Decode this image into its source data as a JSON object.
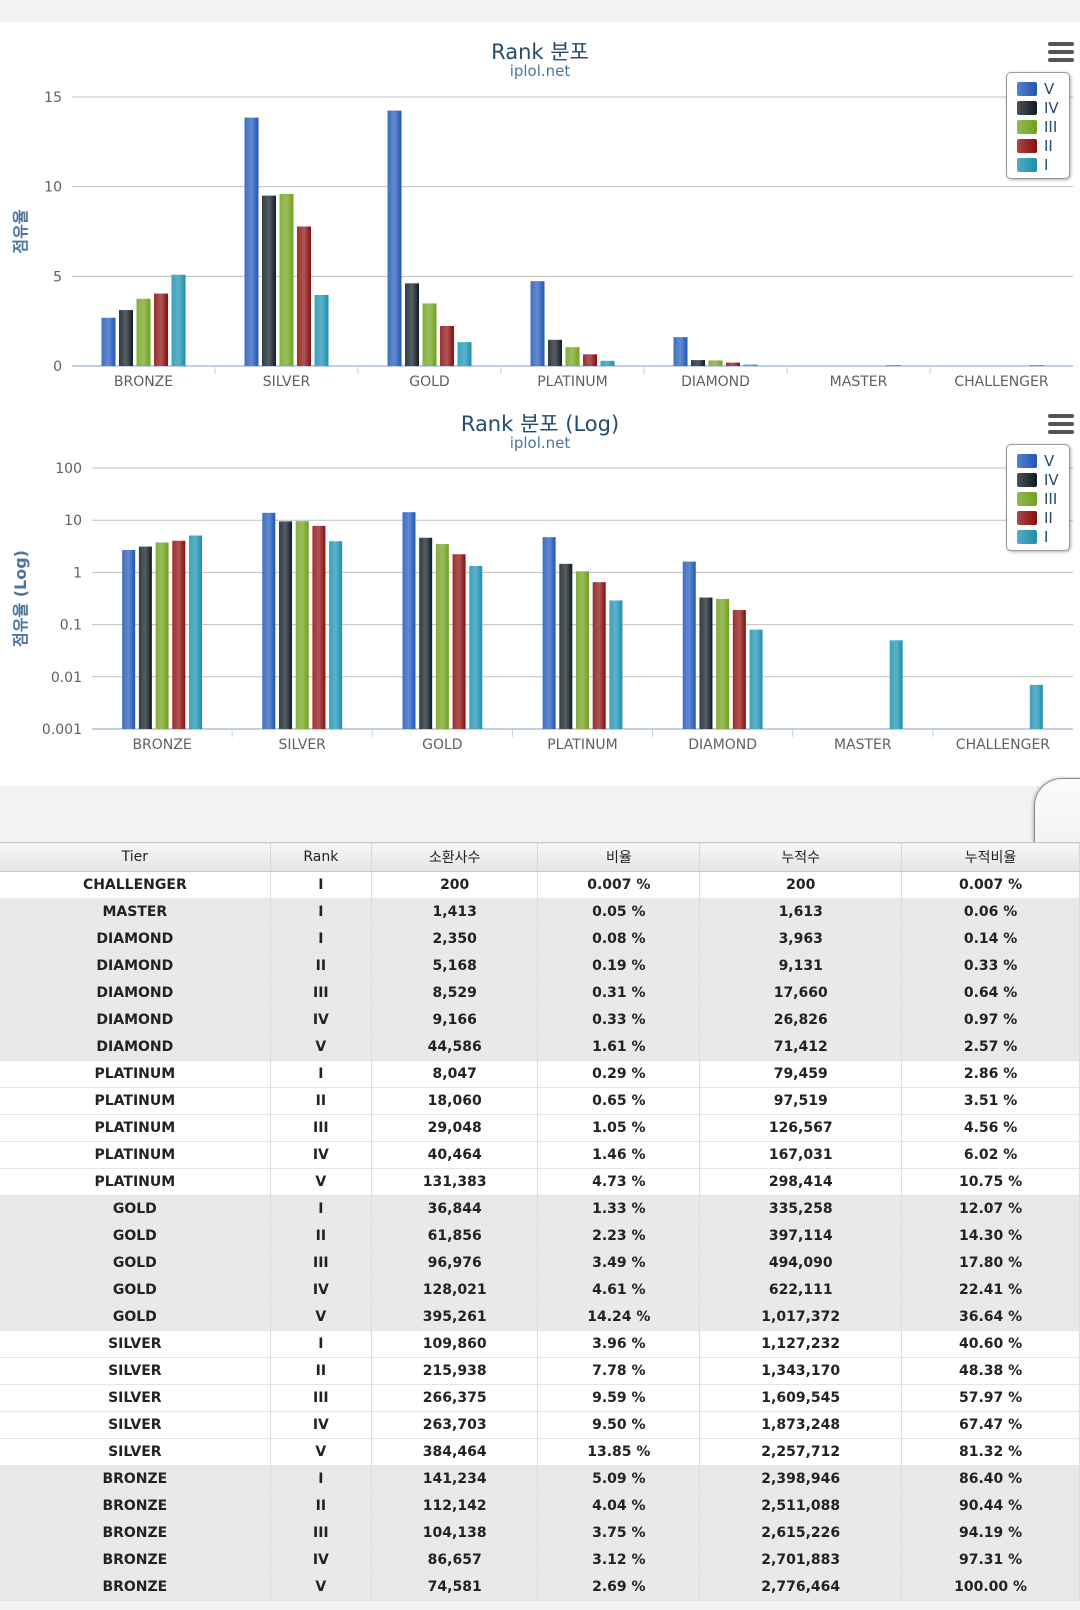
{
  "colors": {
    "series": [
      "#1e56b8",
      "#0e1a22",
      "#6fa118",
      "#8a0c0c",
      "#1990b0"
    ],
    "title": "#274b6d",
    "grid": "#c0c0c0"
  },
  "menu_icon": "hamburger-menu-icon",
  "side_tab_icon": "triangle-left-arrow-icon",
  "chart_data": [
    {
      "type": "bar",
      "title": "Rank 분포",
      "subtitle": "iplol.net",
      "ylabel": "점유율",
      "xlabel": "",
      "ylim": [
        0,
        15
      ],
      "yticks": [
        "0",
        "5",
        "10",
        "15"
      ],
      "grid": true,
      "legend_position": "top-right",
      "categories": [
        "BRONZE",
        "SILVER",
        "GOLD",
        "PLATINUM",
        "DIAMOND",
        "MASTER",
        "CHALLENGER"
      ],
      "series": [
        {
          "name": "V",
          "values": [
            2.69,
            13.85,
            14.24,
            4.73,
            1.61,
            null,
            null
          ]
        },
        {
          "name": "IV",
          "values": [
            3.12,
            9.5,
            4.61,
            1.46,
            0.33,
            null,
            null
          ]
        },
        {
          "name": "III",
          "values": [
            3.75,
            9.59,
            3.49,
            1.05,
            0.31,
            null,
            null
          ]
        },
        {
          "name": "II",
          "values": [
            4.04,
            7.78,
            2.23,
            0.65,
            0.19,
            null,
            null
          ]
        },
        {
          "name": "I",
          "values": [
            5.09,
            3.96,
            1.33,
            0.29,
            0.08,
            0.05,
            0.007
          ]
        }
      ]
    },
    {
      "type": "bar",
      "title": "Rank 분포 (Log)",
      "subtitle": "iplol.net",
      "ylabel": "점유율 (Log)",
      "xlabel": "",
      "yscale": "log",
      "ylim": [
        0.001,
        100
      ],
      "yticks": [
        "0.001",
        "0.01",
        "0.1",
        "1",
        "10",
        "100"
      ],
      "grid": true,
      "legend_position": "top-right",
      "categories": [
        "BRONZE",
        "SILVER",
        "GOLD",
        "PLATINUM",
        "DIAMOND",
        "MASTER",
        "CHALLENGER"
      ],
      "series": [
        {
          "name": "V",
          "values": [
            2.69,
            13.85,
            14.24,
            4.73,
            1.61,
            null,
            null
          ]
        },
        {
          "name": "IV",
          "values": [
            3.12,
            9.5,
            4.61,
            1.46,
            0.33,
            null,
            null
          ]
        },
        {
          "name": "III",
          "values": [
            3.75,
            9.59,
            3.49,
            1.05,
            0.31,
            null,
            null
          ]
        },
        {
          "name": "II",
          "values": [
            4.04,
            7.78,
            2.23,
            0.65,
            0.19,
            null,
            null
          ]
        },
        {
          "name": "I",
          "values": [
            5.09,
            3.96,
            1.33,
            0.29,
            0.08,
            0.05,
            0.007
          ]
        }
      ]
    },
    {
      "type": "table",
      "columns": [
        "Tier",
        "Rank",
        "소환사수",
        "비율",
        "누적수",
        "누적비율"
      ],
      "rows": [
        [
          "CHALLENGER",
          "I",
          "200",
          "0.007 %",
          "200",
          "0.007 %"
        ],
        [
          "MASTER",
          "I",
          "1,413",
          "0.05 %",
          "1,613",
          "0.06 %"
        ],
        [
          "DIAMOND",
          "I",
          "2,350",
          "0.08 %",
          "3,963",
          "0.14 %"
        ],
        [
          "DIAMOND",
          "II",
          "5,168",
          "0.19 %",
          "9,131",
          "0.33 %"
        ],
        [
          "DIAMOND",
          "III",
          "8,529",
          "0.31 %",
          "17,660",
          "0.64 %"
        ],
        [
          "DIAMOND",
          "IV",
          "9,166",
          "0.33 %",
          "26,826",
          "0.97 %"
        ],
        [
          "DIAMOND",
          "V",
          "44,586",
          "1.61 %",
          "71,412",
          "2.57 %"
        ],
        [
          "PLATINUM",
          "I",
          "8,047",
          "0.29 %",
          "79,459",
          "2.86 %"
        ],
        [
          "PLATINUM",
          "II",
          "18,060",
          "0.65 %",
          "97,519",
          "3.51 %"
        ],
        [
          "PLATINUM",
          "III",
          "29,048",
          "1.05 %",
          "126,567",
          "4.56 %"
        ],
        [
          "PLATINUM",
          "IV",
          "40,464",
          "1.46 %",
          "167,031",
          "6.02 %"
        ],
        [
          "PLATINUM",
          "V",
          "131,383",
          "4.73 %",
          "298,414",
          "10.75 %"
        ],
        [
          "GOLD",
          "I",
          "36,844",
          "1.33 %",
          "335,258",
          "12.07 %"
        ],
        [
          "GOLD",
          "II",
          "61,856",
          "2.23 %",
          "397,114",
          "14.30 %"
        ],
        [
          "GOLD",
          "III",
          "96,976",
          "3.49 %",
          "494,090",
          "17.80 %"
        ],
        [
          "GOLD",
          "IV",
          "128,021",
          "4.61 %",
          "622,111",
          "22.41 %"
        ],
        [
          "GOLD",
          "V",
          "395,261",
          "14.24 %",
          "1,017,372",
          "36.64 %"
        ],
        [
          "SILVER",
          "I",
          "109,860",
          "3.96 %",
          "1,127,232",
          "40.60 %"
        ],
        [
          "SILVER",
          "II",
          "215,938",
          "7.78 %",
          "1,343,170",
          "48.38 %"
        ],
        [
          "SILVER",
          "III",
          "266,375",
          "9.59 %",
          "1,609,545",
          "57.97 %"
        ],
        [
          "SILVER",
          "IV",
          "263,703",
          "9.50 %",
          "1,873,248",
          "67.47 %"
        ],
        [
          "SILVER",
          "V",
          "384,464",
          "13.85 %",
          "2,257,712",
          "81.32 %"
        ],
        [
          "BRONZE",
          "I",
          "141,234",
          "5.09 %",
          "2,398,946",
          "86.40 %"
        ],
        [
          "BRONZE",
          "II",
          "112,142",
          "4.04 %",
          "2,511,088",
          "90.44 %"
        ],
        [
          "BRONZE",
          "III",
          "104,138",
          "3.75 %",
          "2,615,226",
          "94.19 %"
        ],
        [
          "BRONZE",
          "IV",
          "86,657",
          "3.12 %",
          "2,701,883",
          "97.31 %"
        ],
        [
          "BRONZE",
          "V",
          "74,581",
          "2.69 %",
          "2,776,464",
          "100.00 %"
        ]
      ]
    }
  ]
}
